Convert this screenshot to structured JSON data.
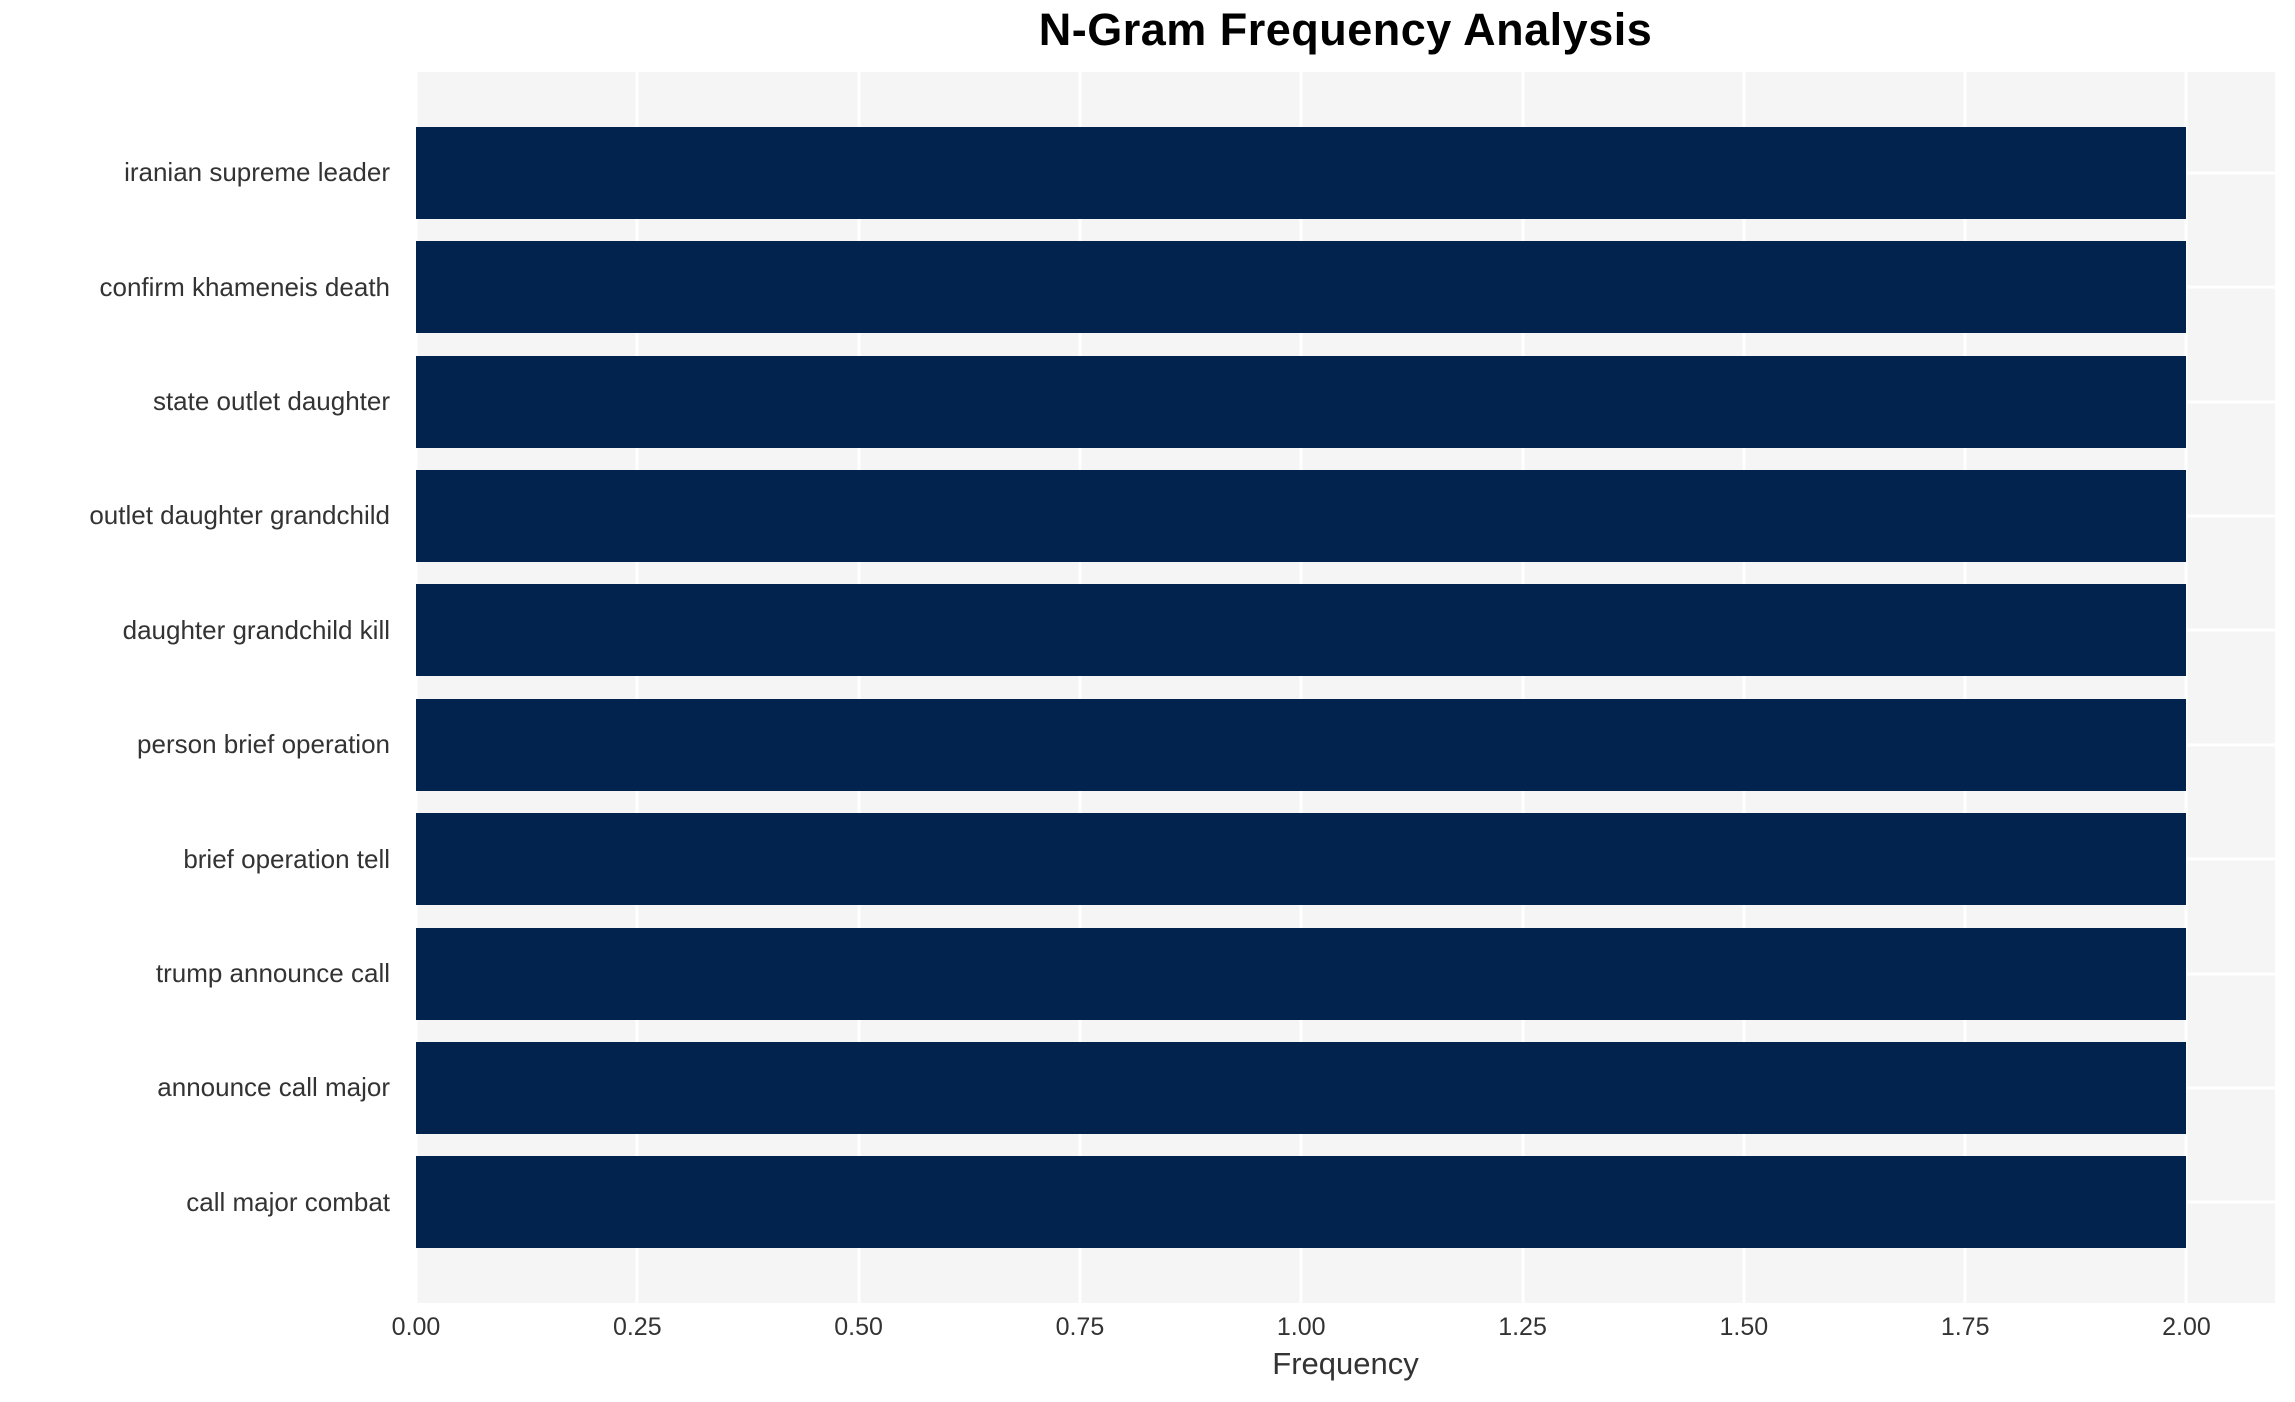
{
  "chart_data": {
    "type": "bar",
    "orientation": "horizontal",
    "title": "N-Gram Frequency Analysis",
    "xlabel": "Frequency",
    "ylabel": "",
    "categories": [
      "iranian supreme leader",
      "confirm khameneis death",
      "state outlet daughter",
      "outlet daughter grandchild",
      "daughter grandchild kill",
      "person brief operation",
      "brief operation tell",
      "trump announce call",
      "announce call major",
      "call major combat"
    ],
    "values": [
      2.0,
      2.0,
      2.0,
      2.0,
      2.0,
      2.0,
      2.0,
      2.0,
      2.0,
      2.0
    ],
    "xlim": [
      0,
      2.1
    ],
    "xtick_values": [
      0.0,
      0.25,
      0.5,
      0.75,
      1.0,
      1.25,
      1.5,
      1.75,
      2.0
    ],
    "xtick_labels": [
      "0.00",
      "0.25",
      "0.50",
      "0.75",
      "1.00",
      "1.25",
      "1.50",
      "1.75",
      "2.00"
    ],
    "grid": true,
    "legend": false,
    "colors": {
      "bar": "#01234d",
      "plot_background": "#f5f5f6",
      "gridline": "#ffffff",
      "tick_text": "#333333",
      "title_text": "#000000"
    }
  }
}
